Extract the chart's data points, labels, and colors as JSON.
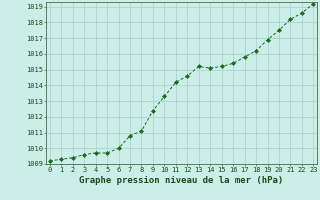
{
  "x": [
    0,
    1,
    2,
    3,
    4,
    5,
    6,
    7,
    8,
    9,
    10,
    11,
    12,
    13,
    14,
    15,
    16,
    17,
    18,
    19,
    20,
    21,
    22,
    23
  ],
  "y": [
    1009.2,
    1009.3,
    1009.4,
    1009.6,
    1009.7,
    1009.7,
    1010.0,
    1010.8,
    1011.1,
    1012.4,
    1013.3,
    1014.2,
    1014.6,
    1015.2,
    1015.1,
    1015.2,
    1015.4,
    1015.8,
    1016.2,
    1016.9,
    1017.5,
    1018.2,
    1018.6,
    1019.2
  ],
  "line_color": "#1a6b1a",
  "marker": "D",
  "marker_size": 2.0,
  "bg_color": "#cceee8",
  "grid_color": "#aacccc",
  "text_color": "#1a4a1a",
  "title": "Graphe pression niveau de la mer (hPa)",
  "ylim_min": 1009,
  "ylim_max": 1019,
  "ytick_step": 1,
  "xlim_min": 0,
  "xlim_max": 23,
  "title_fontsize": 6.5,
  "tick_fontsize": 5.0,
  "spine_color": "#4a6a4a",
  "linewidth": 0.7
}
